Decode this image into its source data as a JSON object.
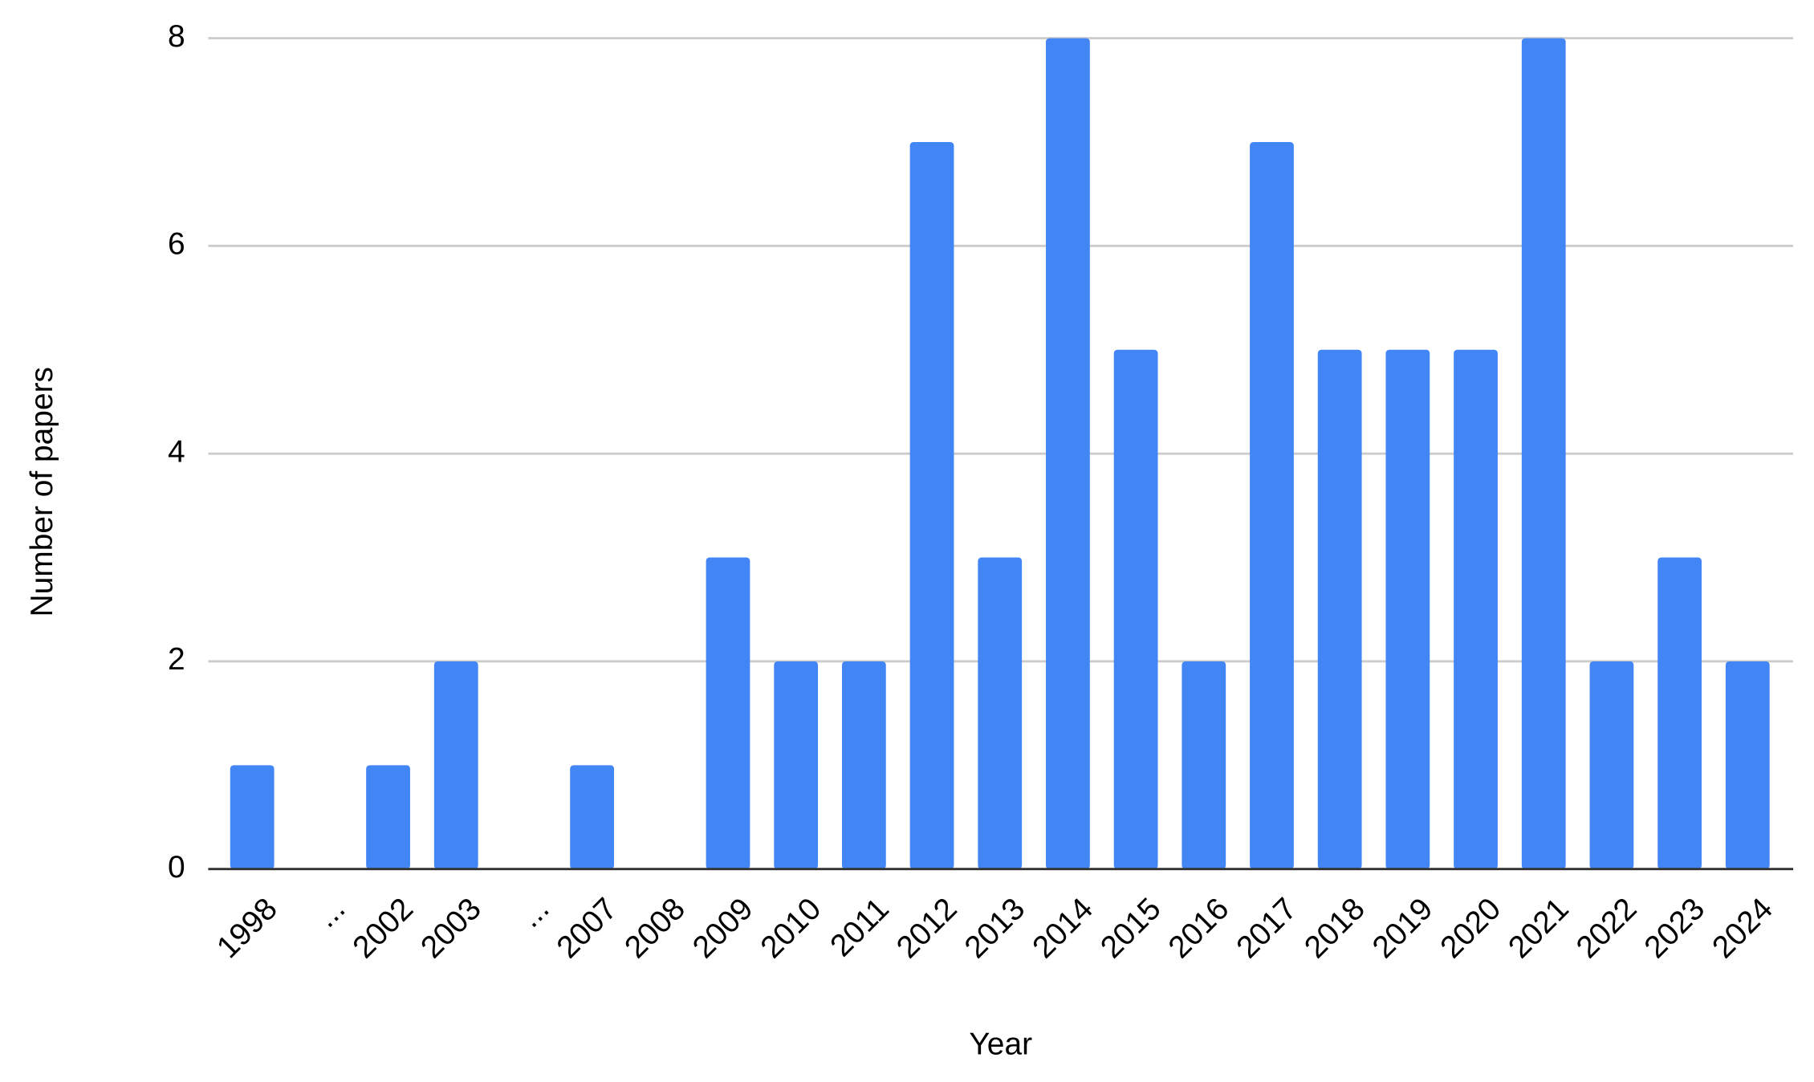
{
  "chart_data": {
    "type": "bar",
    "x_label": "Year",
    "y_label": "Number of papers",
    "categories": [
      "1998",
      "...",
      "2002",
      "2003",
      "...",
      "2007",
      "2008",
      "2009",
      "2010",
      "2011",
      "2012",
      "2013",
      "2014",
      "2015",
      "2016",
      "2017",
      "2018",
      "2019",
      "2020",
      "2021",
      "2022",
      "2023",
      "2024"
    ],
    "values": [
      1,
      null,
      1,
      2,
      null,
      1,
      0,
      3,
      2,
      2,
      7,
      3,
      8,
      5,
      2,
      7,
      5,
      5,
      5,
      8,
      2,
      3,
      2
    ],
    "color": "#4285f4",
    "ylim": [
      0,
      8
    ],
    "yticks": [
      0,
      2,
      4,
      6,
      8
    ],
    "grid": true
  }
}
